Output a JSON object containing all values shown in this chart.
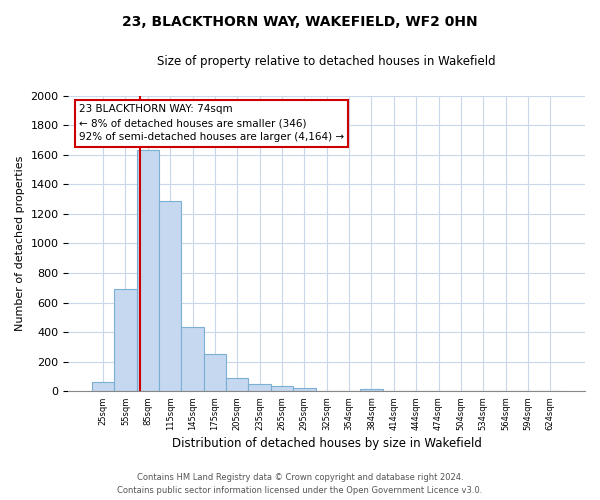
{
  "title": "23, BLACKTHORN WAY, WAKEFIELD, WF2 0HN",
  "subtitle": "Size of property relative to detached houses in Wakefield",
  "xlabel": "Distribution of detached houses by size in Wakefield",
  "ylabel": "Number of detached properties",
  "bar_labels": [
    "25sqm",
    "55sqm",
    "85sqm",
    "115sqm",
    "145sqm",
    "175sqm",
    "205sqm",
    "235sqm",
    "265sqm",
    "295sqm",
    "325sqm",
    "354sqm",
    "384sqm",
    "414sqm",
    "444sqm",
    "474sqm",
    "504sqm",
    "534sqm",
    "564sqm",
    "594sqm",
    "624sqm"
  ],
  "bar_values": [
    65,
    695,
    1635,
    1285,
    435,
    255,
    90,
    50,
    35,
    25,
    0,
    0,
    15,
    0,
    0,
    0,
    0,
    0,
    0,
    0,
    0
  ],
  "bar_color": "#c5d8f0",
  "bar_edge_color": "#7bafd4",
  "marker_line_color": "#cc0000",
  "annotation_line1": "23 BLACKTHORN WAY: 74sqm",
  "annotation_line2": "← 8% of detached houses are smaller (346)",
  "annotation_line3": "92% of semi-detached houses are larger (4,164) →",
  "annotation_box_color": "#ffffff",
  "annotation_box_edge": "#cc0000",
  "ylim": [
    0,
    2000
  ],
  "yticks": [
    0,
    200,
    400,
    600,
    800,
    1000,
    1200,
    1400,
    1600,
    1800,
    2000
  ],
  "footer_line1": "Contains HM Land Registry data © Crown copyright and database right 2024.",
  "footer_line2": "Contains public sector information licensed under the Open Government Licence v3.0.",
  "background_color": "#ffffff",
  "grid_color": "#c8d8e8"
}
